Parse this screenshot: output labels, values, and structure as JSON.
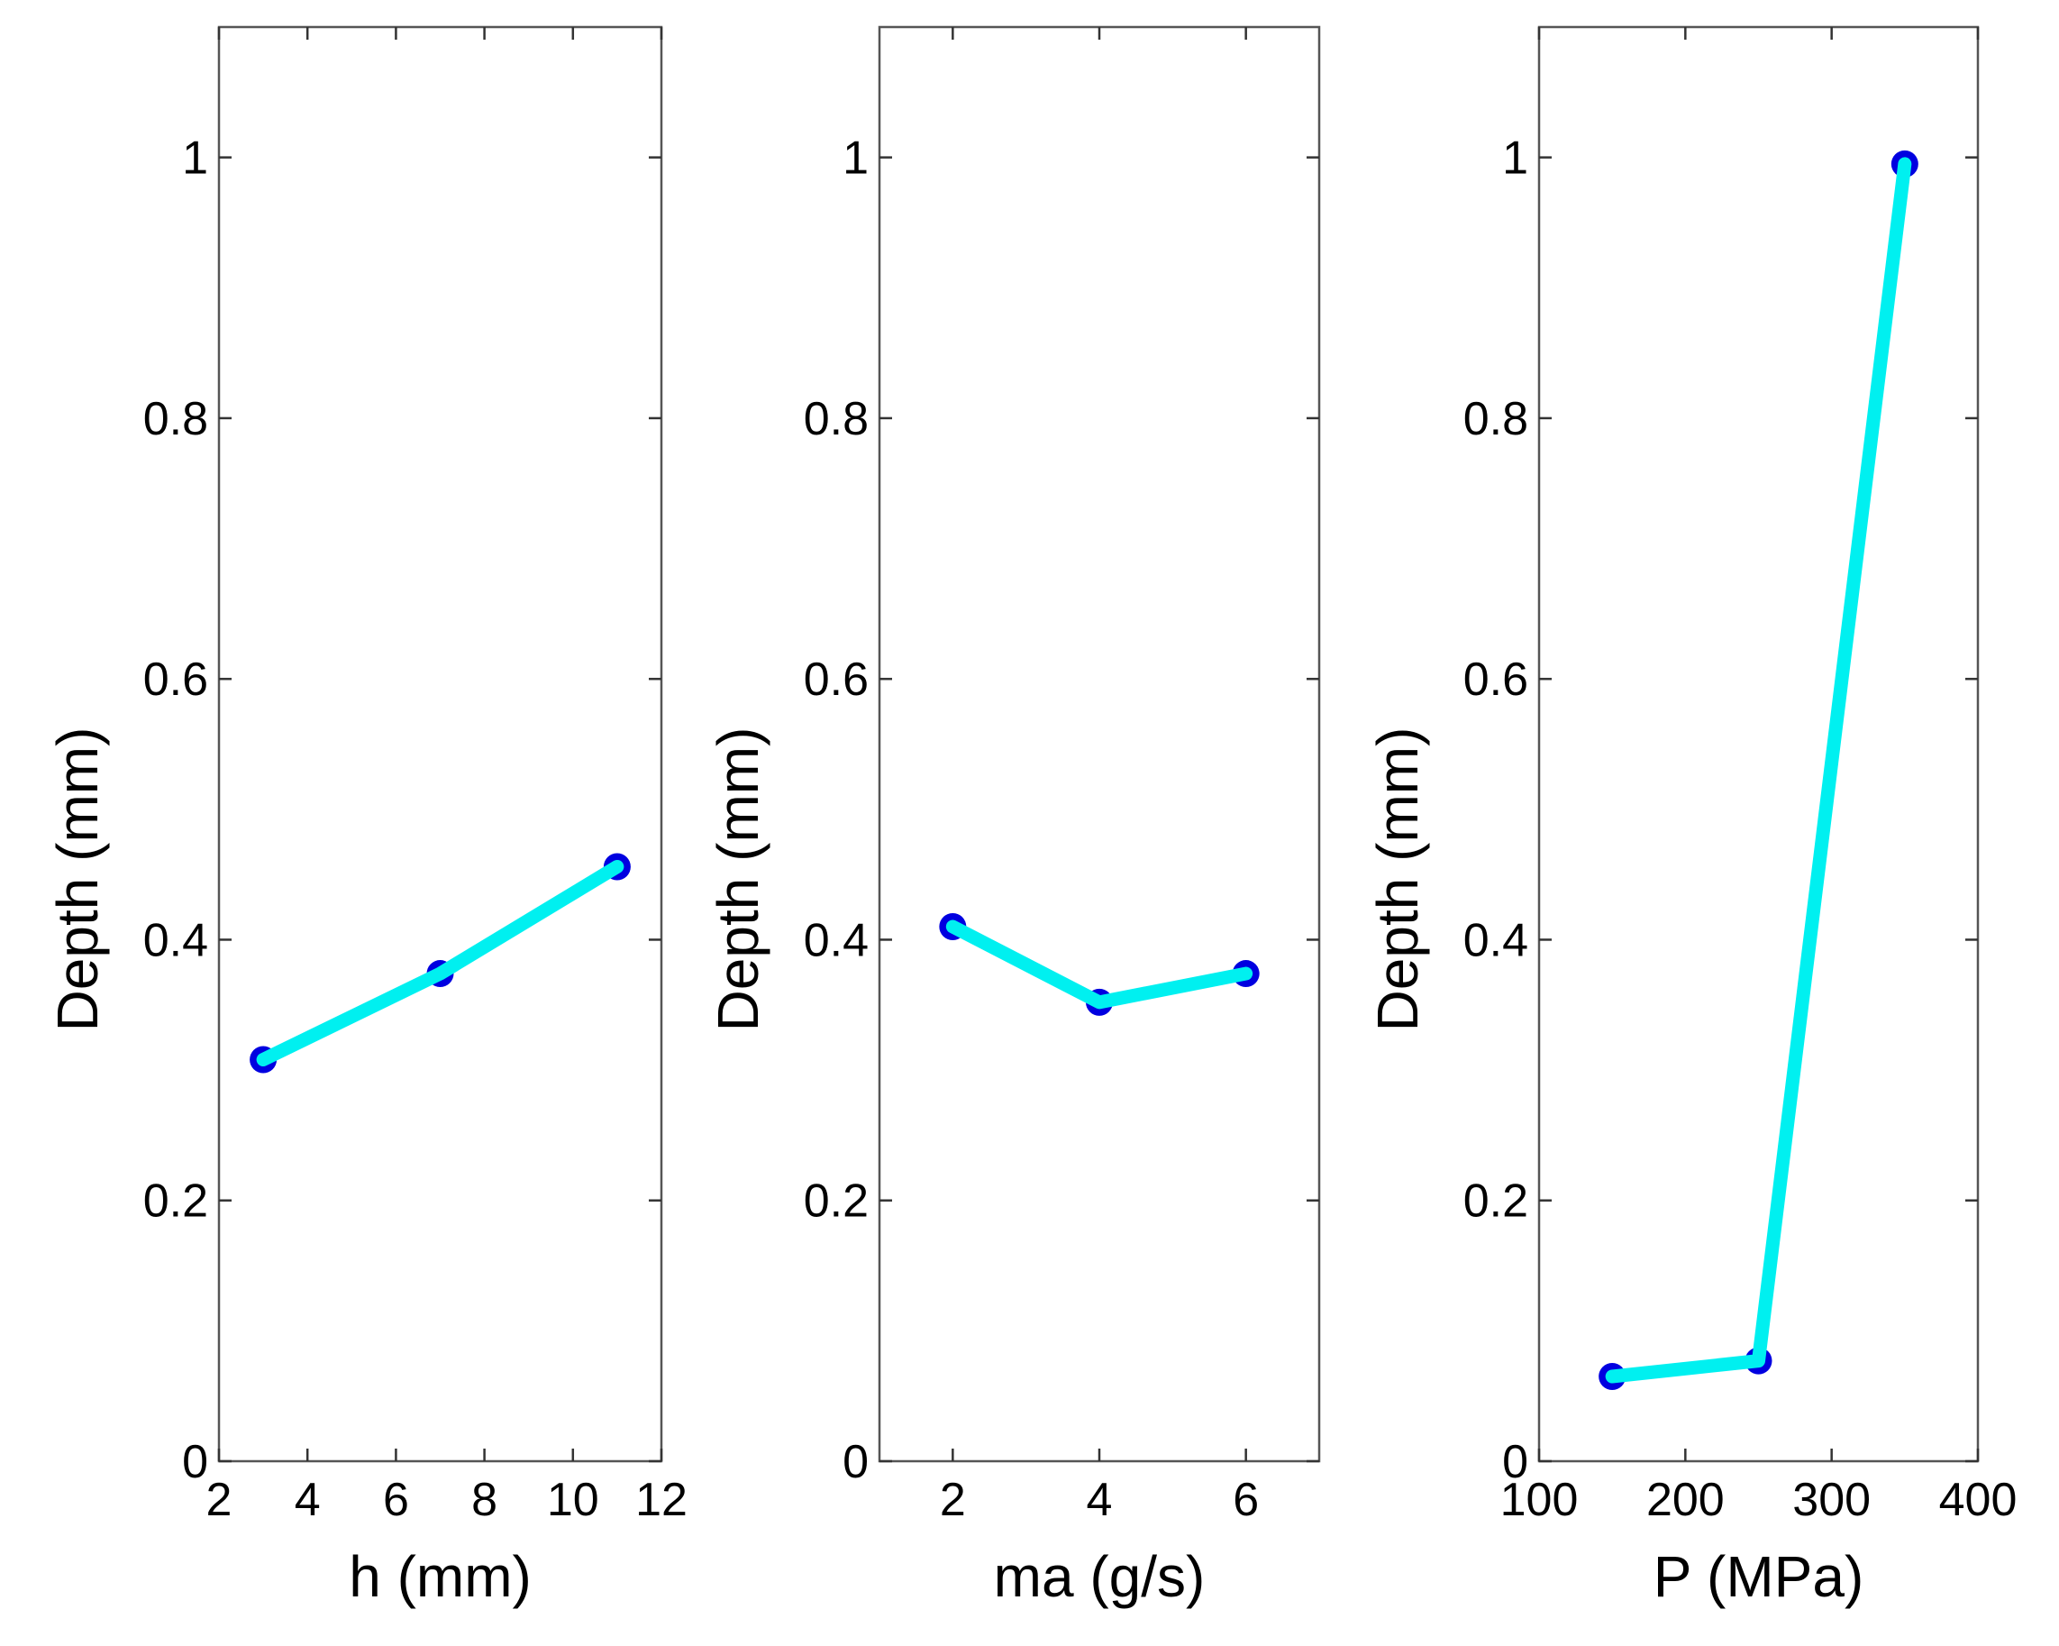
{
  "chart_data": [
    {
      "type": "line",
      "xlabel": "h (mm)",
      "ylabel": "Depth (mm)",
      "xlim": [
        2,
        12
      ],
      "ylim": [
        0,
        1.1
      ],
      "xticks": [
        2,
        4,
        6,
        8,
        10,
        12
      ],
      "yticks": [
        0,
        0.2,
        0.4,
        0.6,
        0.8,
        1
      ],
      "series": [
        {
          "name": "Depth",
          "x": [
            3,
            7,
            11
          ],
          "y": [
            0.308,
            0.374,
            0.456
          ]
        }
      ],
      "line_color": "#00f0f0",
      "marker_color": "#0000e0"
    },
    {
      "type": "line",
      "xlabel": "ma (g/s)",
      "ylabel": "Depth (mm)",
      "xlim": [
        1,
        7
      ],
      "ylim": [
        0,
        1.1
      ],
      "xticks": [
        2,
        4,
        6
      ],
      "yticks": [
        0,
        0.2,
        0.4,
        0.6,
        0.8,
        1
      ],
      "series": [
        {
          "name": "Depth",
          "x": [
            2,
            4,
            6
          ],
          "y": [
            0.41,
            0.352,
            0.374
          ]
        }
      ],
      "line_color": "#00f0f0",
      "marker_color": "#0000e0"
    },
    {
      "type": "line",
      "xlabel": "P (MPa)",
      "ylabel": "Depth (mm)",
      "xlim": [
        100,
        400
      ],
      "ylim": [
        0,
        1.1
      ],
      "xticks": [
        100,
        200,
        300,
        400
      ],
      "yticks": [
        0,
        0.2,
        0.4,
        0.6,
        0.8,
        1
      ],
      "series": [
        {
          "name": "Depth",
          "x": [
            150,
            250,
            350
          ],
          "y": [
            0.065,
            0.077,
            0.995
          ]
        }
      ],
      "line_color": "#00f0f0",
      "marker_color": "#0000e0"
    }
  ]
}
